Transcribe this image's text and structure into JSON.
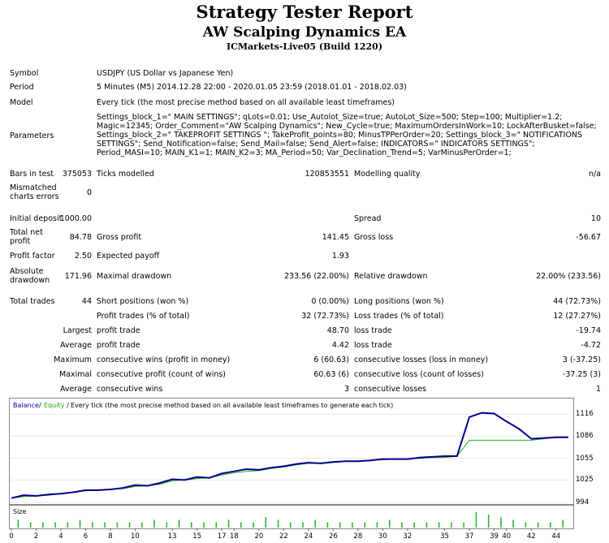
{
  "header": {
    "title": "Strategy Tester Report",
    "ea_name": "AW Scalping Dynamics EA",
    "account": "ICMarkets-Live05 (Build 1220)"
  },
  "info": {
    "symbol_label": "Symbol",
    "symbol_value": "USDJPY (US Dollar vs Japanese Yen)",
    "period_label": "Period",
    "period_value": "5 Minutes (M5) 2014.12.28 22:00 - 2020.01.05 23:59 (2018.01.01 - 2018.02.03)",
    "model_label": "Model",
    "model_value": "Every tick (the most precise method based on all available least timeframes)",
    "parameters_label": "Parameters",
    "parameters_value": "Settings_block_1=\" MAIN SETTINGS\"; qLots=0.01; Use_Autolot_Size=true; AutoLot_Size=500; Step=100; Multiplier=1.2; Magic=12345; Order_Comment=\"AW Scalping Dynamics\"; New_Cycle=true; MaximumOrdersInWork=10; LockAfterBusket=false; Settings_block_2=\" TAKEPROFIT SETTINGS \"; TakeProfit_points=80; MinusTPPerOrder=20; Settings_block_3=\" NOTIFICATIONS SETTINGS\"; Send_Notification=false; Send_Mail=false; Send_Alert=false; INDICATORS=\" INDICATORS SETTINGS\"; Period_MASI=10; MAIN_K1=1; MAIN_K2=3; MA_Period=50; Var_Declination_Trend=5; VarMinusPerOrder=1;"
  },
  "stats": {
    "bars_label": "Bars in test",
    "bars_value": "375053",
    "ticks_label": "Ticks modelled",
    "ticks_value": "120853551",
    "quality_label": "Modelling quality",
    "quality_value": "n/a",
    "mismatch_label_1": "Mismatched",
    "mismatch_label_2": "charts errors",
    "mismatch_value": "0",
    "deposit_label": "Initial deposit",
    "deposit_value": "1000.00",
    "spread_label": "Spread",
    "spread_value": "10",
    "netprofit_label_1": "Total net",
    "netprofit_label_2": "profit",
    "netprofit_value": "84.78",
    "grossprofit_label": "Gross profit",
    "grossprofit_value": "141.45",
    "grossloss_label": "Gross loss",
    "grossloss_value": "-56.67",
    "pf_label": "Profit factor",
    "pf_value": "2.50",
    "payoff_label": "Expected payoff",
    "payoff_value": "1.93",
    "absdd_label_1": "Absolute",
    "absdd_label_2": "drawdown",
    "absdd_value": "171.96",
    "maxdd_label": "Maximal drawdown",
    "maxdd_value": "233.56 (22.00%)",
    "reldd_label": "Relative drawdown",
    "reldd_value": "22.00% (233.56)",
    "trades_label": "Total trades",
    "trades_value": "44",
    "short_label": "Short positions (won %)",
    "short_value": "0 (0.00%)",
    "long_label": "Long positions (won %)",
    "long_value": "44 (72.73%)",
    "profit_trades_label": "Profit trades (% of total)",
    "profit_trades_value": "32 (72.73%)",
    "loss_trades_label": "Loss trades (% of total)",
    "loss_trades_value": "12 (27.27%)",
    "largest_label": "Largest",
    "largest_profit_label": "profit trade",
    "largest_profit_value": "48.70",
    "largest_loss_label": "loss trade",
    "largest_loss_value": "-19.74",
    "average_label": "Average",
    "average_profit_label": "profit trade",
    "average_profit_value": "4.42",
    "average_loss_label": "loss trade",
    "average_loss_value": "-4.72",
    "maximum_label": "Maximum",
    "max_wins_label": "consecutive wins (profit in money)",
    "max_wins_value": "6 (60.63)",
    "max_losses_label": "consecutive losses (loss in money)",
    "max_losses_value": "3 (-37.25)",
    "maximal_label": "Maximal",
    "maximal_profit_label": "consecutive profit (count of wins)",
    "maximal_profit_value": "60.63 (6)",
    "maximal_loss_label": "consecutive loss (count of losses)",
    "maximal_loss_value": "-37.25 (3)",
    "avg_label": "Average",
    "avg_wins_label": "consecutive wins",
    "avg_wins_value": "3",
    "avg_losses_label": "consecutive losses",
    "avg_losses_value": "1"
  },
  "chart_data": {
    "type": "line",
    "legend": {
      "balance": "Balance",
      "equity": "Equity",
      "desc": "Every tick (the most precise method based on all available least timeframes to generate each tick)"
    },
    "size_label": "Size",
    "x_ticks": [
      0,
      2,
      4,
      6,
      8,
      10,
      13,
      15,
      17,
      18,
      20,
      22,
      24,
      26,
      28,
      30,
      32,
      35,
      37,
      39,
      40,
      42,
      44
    ],
    "y_ticks": [
      1116,
      1086,
      1055,
      1025,
      994
    ],
    "ylim": [
      994,
      1122
    ],
    "xlim": [
      0,
      45
    ],
    "colors": {
      "balance": "#00008b",
      "equity": "#20b020",
      "size": "#20b020"
    },
    "series": [
      {
        "name": "Balance",
        "x": [
          0,
          1,
          2,
          3,
          4,
          5,
          6,
          7,
          8,
          9,
          10,
          11,
          12,
          13,
          14,
          15,
          16,
          17,
          18,
          19,
          20,
          21,
          22,
          23,
          24,
          25,
          26,
          27,
          28,
          29,
          30,
          31,
          32,
          33,
          34,
          35,
          36,
          37,
          38,
          39,
          40,
          41,
          42,
          43,
          44,
          45
        ],
        "values": [
          1000,
          1004,
          1003,
          1005,
          1006,
          1008,
          1011,
          1011,
          1012,
          1014,
          1018,
          1017,
          1021,
          1026,
          1025,
          1029,
          1028,
          1034,
          1037,
          1040,
          1039,
          1042,
          1044,
          1047,
          1049,
          1048,
          1050,
          1051,
          1051,
          1052,
          1054,
          1054,
          1054,
          1056,
          1057,
          1058,
          1058,
          1112,
          1118,
          1117,
          1106,
          1096,
          1082,
          1083,
          1084,
          1084
        ]
      },
      {
        "name": "Equity",
        "x": [
          0,
          1,
          2,
          3,
          4,
          5,
          6,
          7,
          8,
          9,
          10,
          11,
          12,
          13,
          14,
          15,
          16,
          17,
          18,
          19,
          20,
          21,
          22,
          23,
          24,
          25,
          26,
          27,
          28,
          29,
          30,
          31,
          32,
          33,
          34,
          35,
          36,
          37,
          38,
          39,
          40,
          41,
          42,
          43,
          44,
          45
        ],
        "values": [
          1000,
          1002,
          1003,
          1004,
          1006,
          1008,
          1010,
          1011,
          1012,
          1013,
          1016,
          1017,
          1019,
          1024,
          1025,
          1027,
          1028,
          1032,
          1035,
          1037,
          1038,
          1041,
          1043,
          1046,
          1048,
          1048,
          1049,
          1051,
          1051,
          1052,
          1053,
          1054,
          1054,
          1055,
          1056,
          1056,
          1058,
          1080,
          1080,
          1080,
          1080,
          1080,
          1080,
          1082,
          1084,
          1084
        ]
      }
    ],
    "size_values": [
      3,
      2,
      2,
      2,
      2,
      3,
      2,
      2,
      2,
      2,
      2,
      3,
      2,
      3,
      2,
      2,
      2,
      3,
      2,
      2,
      4,
      3,
      2,
      2,
      3,
      2,
      2,
      2,
      2,
      2,
      3,
      2,
      2,
      2,
      2,
      2,
      2,
      6,
      5,
      4,
      3,
      2,
      2,
      2,
      3
    ]
  }
}
